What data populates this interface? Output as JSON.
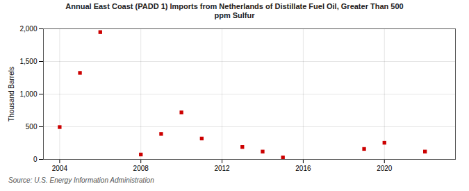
{
  "chart_data": {
    "type": "scatter",
    "title": "Annual East Coast (PADD 1) Imports from Netherlands of Distillate Fuel Oil, Greater Than 500\nppm Sulfur",
    "ylabel": "Thousand Barrels",
    "source": "Source: U.S. Energy Information Administration",
    "x": [
      2004,
      2005,
      2006,
      2008,
      2009,
      2010,
      2011,
      2013,
      2014,
      2015,
      2019,
      2020,
      2022
    ],
    "values": [
      495,
      1325,
      1950,
      75,
      390,
      720,
      320,
      190,
      120,
      30,
      160,
      255,
      120
    ],
    "color": "#cc0000",
    "marker": "square",
    "xlim": [
      2003.2,
      2023.5
    ],
    "xticks": [
      2004,
      2008,
      2012,
      2016,
      2020
    ],
    "ylim": [
      0,
      2000
    ],
    "yticks": [
      0,
      500,
      {
        "value": 1000,
        "label": "1,000"
      },
      {
        "value": 1500,
        "label": "1,500"
      },
      {
        "value": 2000,
        "label": "2,000"
      }
    ],
    "grid": true
  }
}
